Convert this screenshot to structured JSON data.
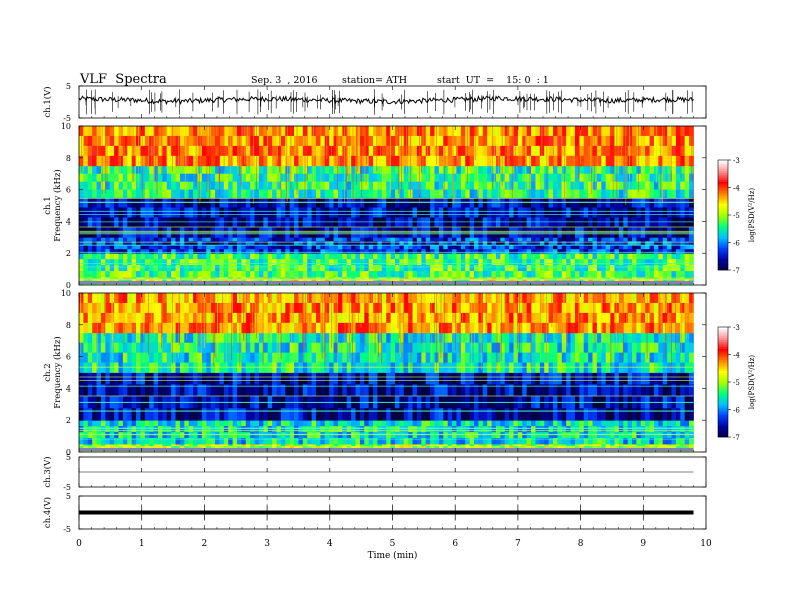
{
  "header": {
    "title": "VLF  Spectra",
    "date": "Sep. 3  , 2016",
    "station": "station= ATH",
    "start_ut": "start  UT  =    15: 0  : 1"
  },
  "colors": {
    "spectrogram_scale": [
      "#000040",
      "#0000a0",
      "#0040ff",
      "#00c0ff",
      "#00ff80",
      "#a0ff00",
      "#ffff00",
      "#ff8000",
      "#ff0000",
      "#ff9090",
      "#ffffff"
    ],
    "waveform": "#000000"
  },
  "chart_data": [
    {
      "type": "line",
      "panel": "ch.1 waveform",
      "ylabel": "ch.1(V)",
      "ylim": [
        -5,
        5
      ],
      "yticks": [
        "5",
        "-5"
      ],
      "series": [
        {
          "values": [
            1.0,
            0.8,
            0.6,
            0.2,
            0.3,
            0.7,
            0.9,
            1.0,
            0.7,
            0.5,
            0.3,
            0.1,
            0.3,
            0.6,
            0.8,
            1.2,
            1.0,
            0.9,
            0.6,
            0.4,
            0.6,
            0.8,
            0.7
          ]
        }
      ]
    },
    {
      "type": "heatmap",
      "panel": "ch.1 spectrogram",
      "ylabel": "ch.1\nFrequency  (kHz)",
      "ylim": [
        0,
        10
      ],
      "yticks": [
        "0",
        "2",
        "4",
        "6",
        "8",
        "10"
      ],
      "colorbar": {
        "label": "log(PSD(V²/Hz)",
        "range": [
          -7,
          -3
        ],
        "ticks": [
          "-3",
          "-4",
          "-5",
          "-6",
          "-7"
        ]
      },
      "band_values": [
        {
          "f_min": 0.0,
          "f_max": 0.5,
          "log_psd": -4.8
        },
        {
          "f_min": 0.5,
          "f_max": 2.0,
          "log_psd": -5.3
        },
        {
          "f_min": 2.0,
          "f_max": 3.0,
          "log_psd": -6.3
        },
        {
          "f_min": 3.0,
          "f_max": 5.5,
          "log_psd": -6.6
        },
        {
          "f_min": 5.5,
          "f_max": 7.5,
          "log_psd": -5.4
        },
        {
          "f_min": 7.5,
          "f_max": 10.0,
          "log_psd": -4.2
        }
      ]
    },
    {
      "type": "heatmap",
      "panel": "ch.2 spectrogram",
      "ylabel": "ch.2\nFrequency  (kHz)",
      "ylim": [
        0,
        10
      ],
      "yticks": [
        "0",
        "2",
        "4",
        "6",
        "8",
        "10"
      ],
      "colorbar": {
        "label": "log(PSD(V²/Hz)",
        "range": [
          -7,
          -3
        ],
        "ticks": [
          "-3",
          "-4",
          "-5",
          "-6",
          "-7"
        ]
      },
      "band_values": [
        {
          "f_min": 0.0,
          "f_max": 0.5,
          "log_psd": -4.9
        },
        {
          "f_min": 0.5,
          "f_max": 2.0,
          "log_psd": -5.6
        },
        {
          "f_min": 2.0,
          "f_max": 5.0,
          "log_psd": -6.6
        },
        {
          "f_min": 5.0,
          "f_max": 7.5,
          "log_psd": -5.5
        },
        {
          "f_min": 7.5,
          "f_max": 10.0,
          "log_psd": -4.3
        }
      ]
    },
    {
      "type": "line",
      "panel": "ch.3 waveform",
      "ylabel": "ch.3(V)",
      "ylim": [
        -5,
        5
      ],
      "yticks": [
        "5",
        "-5"
      ],
      "series": [
        {
          "values": [
            0.0,
            0.0,
            0.0,
            0.0
          ]
        }
      ]
    },
    {
      "type": "line",
      "panel": "ch.4 waveform",
      "ylabel": "ch.4(V)",
      "ylim": [
        -5,
        5
      ],
      "yticks": [
        "5",
        "-5"
      ],
      "series": [
        {
          "values": [
            0.0,
            0.0,
            0.0,
            0.0
          ]
        }
      ]
    }
  ],
  "time_axis": {
    "xlabel": "Time  (min)",
    "xlim": [
      0,
      10
    ],
    "ticks": [
      "0",
      "1",
      "2",
      "3",
      "4",
      "5",
      "6",
      "7",
      "8",
      "9",
      "10"
    ],
    "data_end": 9.8
  }
}
